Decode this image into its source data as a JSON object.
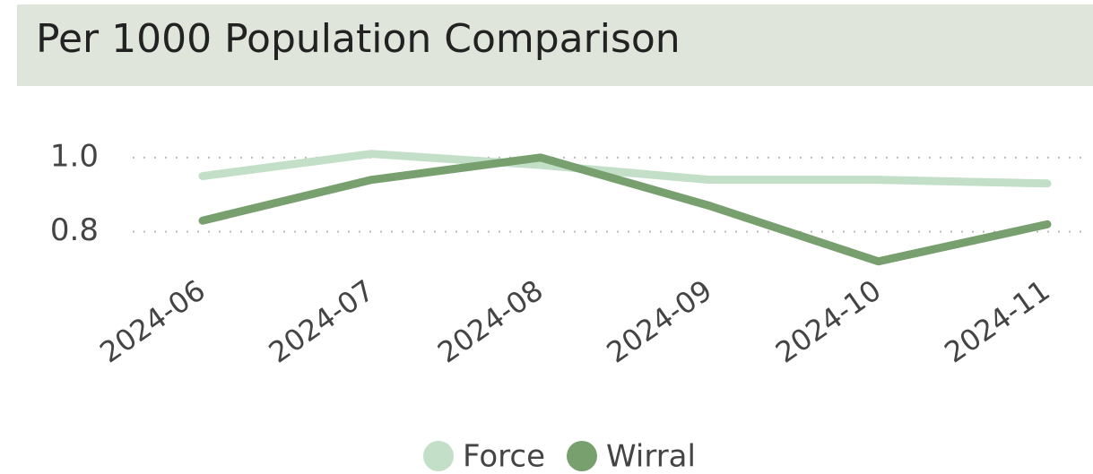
{
  "chart_data": {
    "type": "line",
    "title": "Per 1000 Population Comparison",
    "categories": [
      "2024-06",
      "2024-07",
      "2024-08",
      "2024-09",
      "2024-10",
      "2024-11"
    ],
    "series": [
      {
        "name": "Force",
        "color": "#c3dfc8",
        "values": [
          0.95,
          1.01,
          0.98,
          0.94,
          0.94,
          0.93
        ]
      },
      {
        "name": "Wirral",
        "color": "#77a06e",
        "values": [
          0.83,
          0.94,
          1.0,
          0.87,
          0.72,
          0.82
        ]
      }
    ],
    "ylim": [
      0.7,
      1.06
    ],
    "yticks": [
      {
        "value": 0.8,
        "label": "0.8"
      },
      {
        "value": 1.0,
        "label": "1.0"
      }
    ],
    "grid": true,
    "legend": "bottom"
  }
}
